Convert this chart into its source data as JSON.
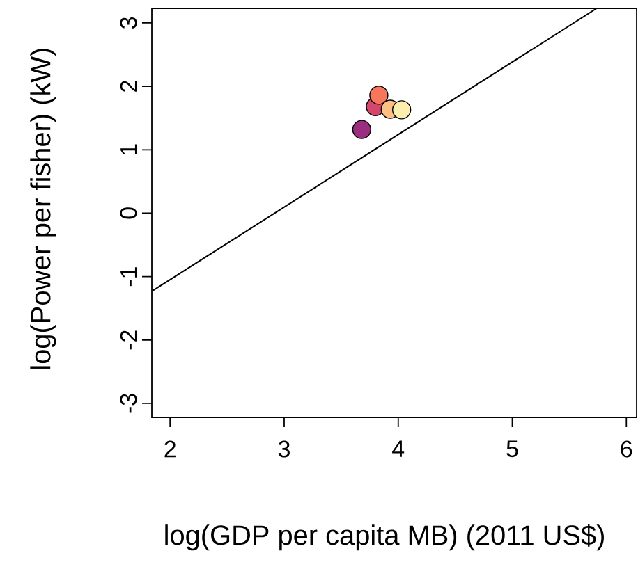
{
  "chart_data": {
    "type": "scatter",
    "xlabel": "log(GDP per capita MB) (2011 US$)",
    "ylabel": "log(Power per fisher) (kW)",
    "xlim": [
      1.84,
      6.09
    ],
    "ylim": [
      -3.22,
      3.23
    ],
    "xticks": [
      2,
      3,
      4,
      5,
      6
    ],
    "yticks": [
      -3,
      -2,
      -1,
      0,
      1,
      2,
      3
    ],
    "grid": false,
    "marker": "circle",
    "series": [
      {
        "type": "line",
        "x": [
          1.85,
          5.74
        ],
        "values": [
          -1.22,
          3.23
        ],
        "color": "#000000",
        "line_style": "solid",
        "marker": "none"
      },
      {
        "x": [
          3.68,
          3.8,
          3.83,
          3.93,
          4.03
        ],
        "values": [
          1.32,
          1.68,
          1.86,
          1.64,
          1.63
        ],
        "colors": [
          "#9c2e7f",
          "#d6456c",
          "#f8765c",
          "#fdbf84",
          "#fcefae"
        ]
      }
    ]
  }
}
